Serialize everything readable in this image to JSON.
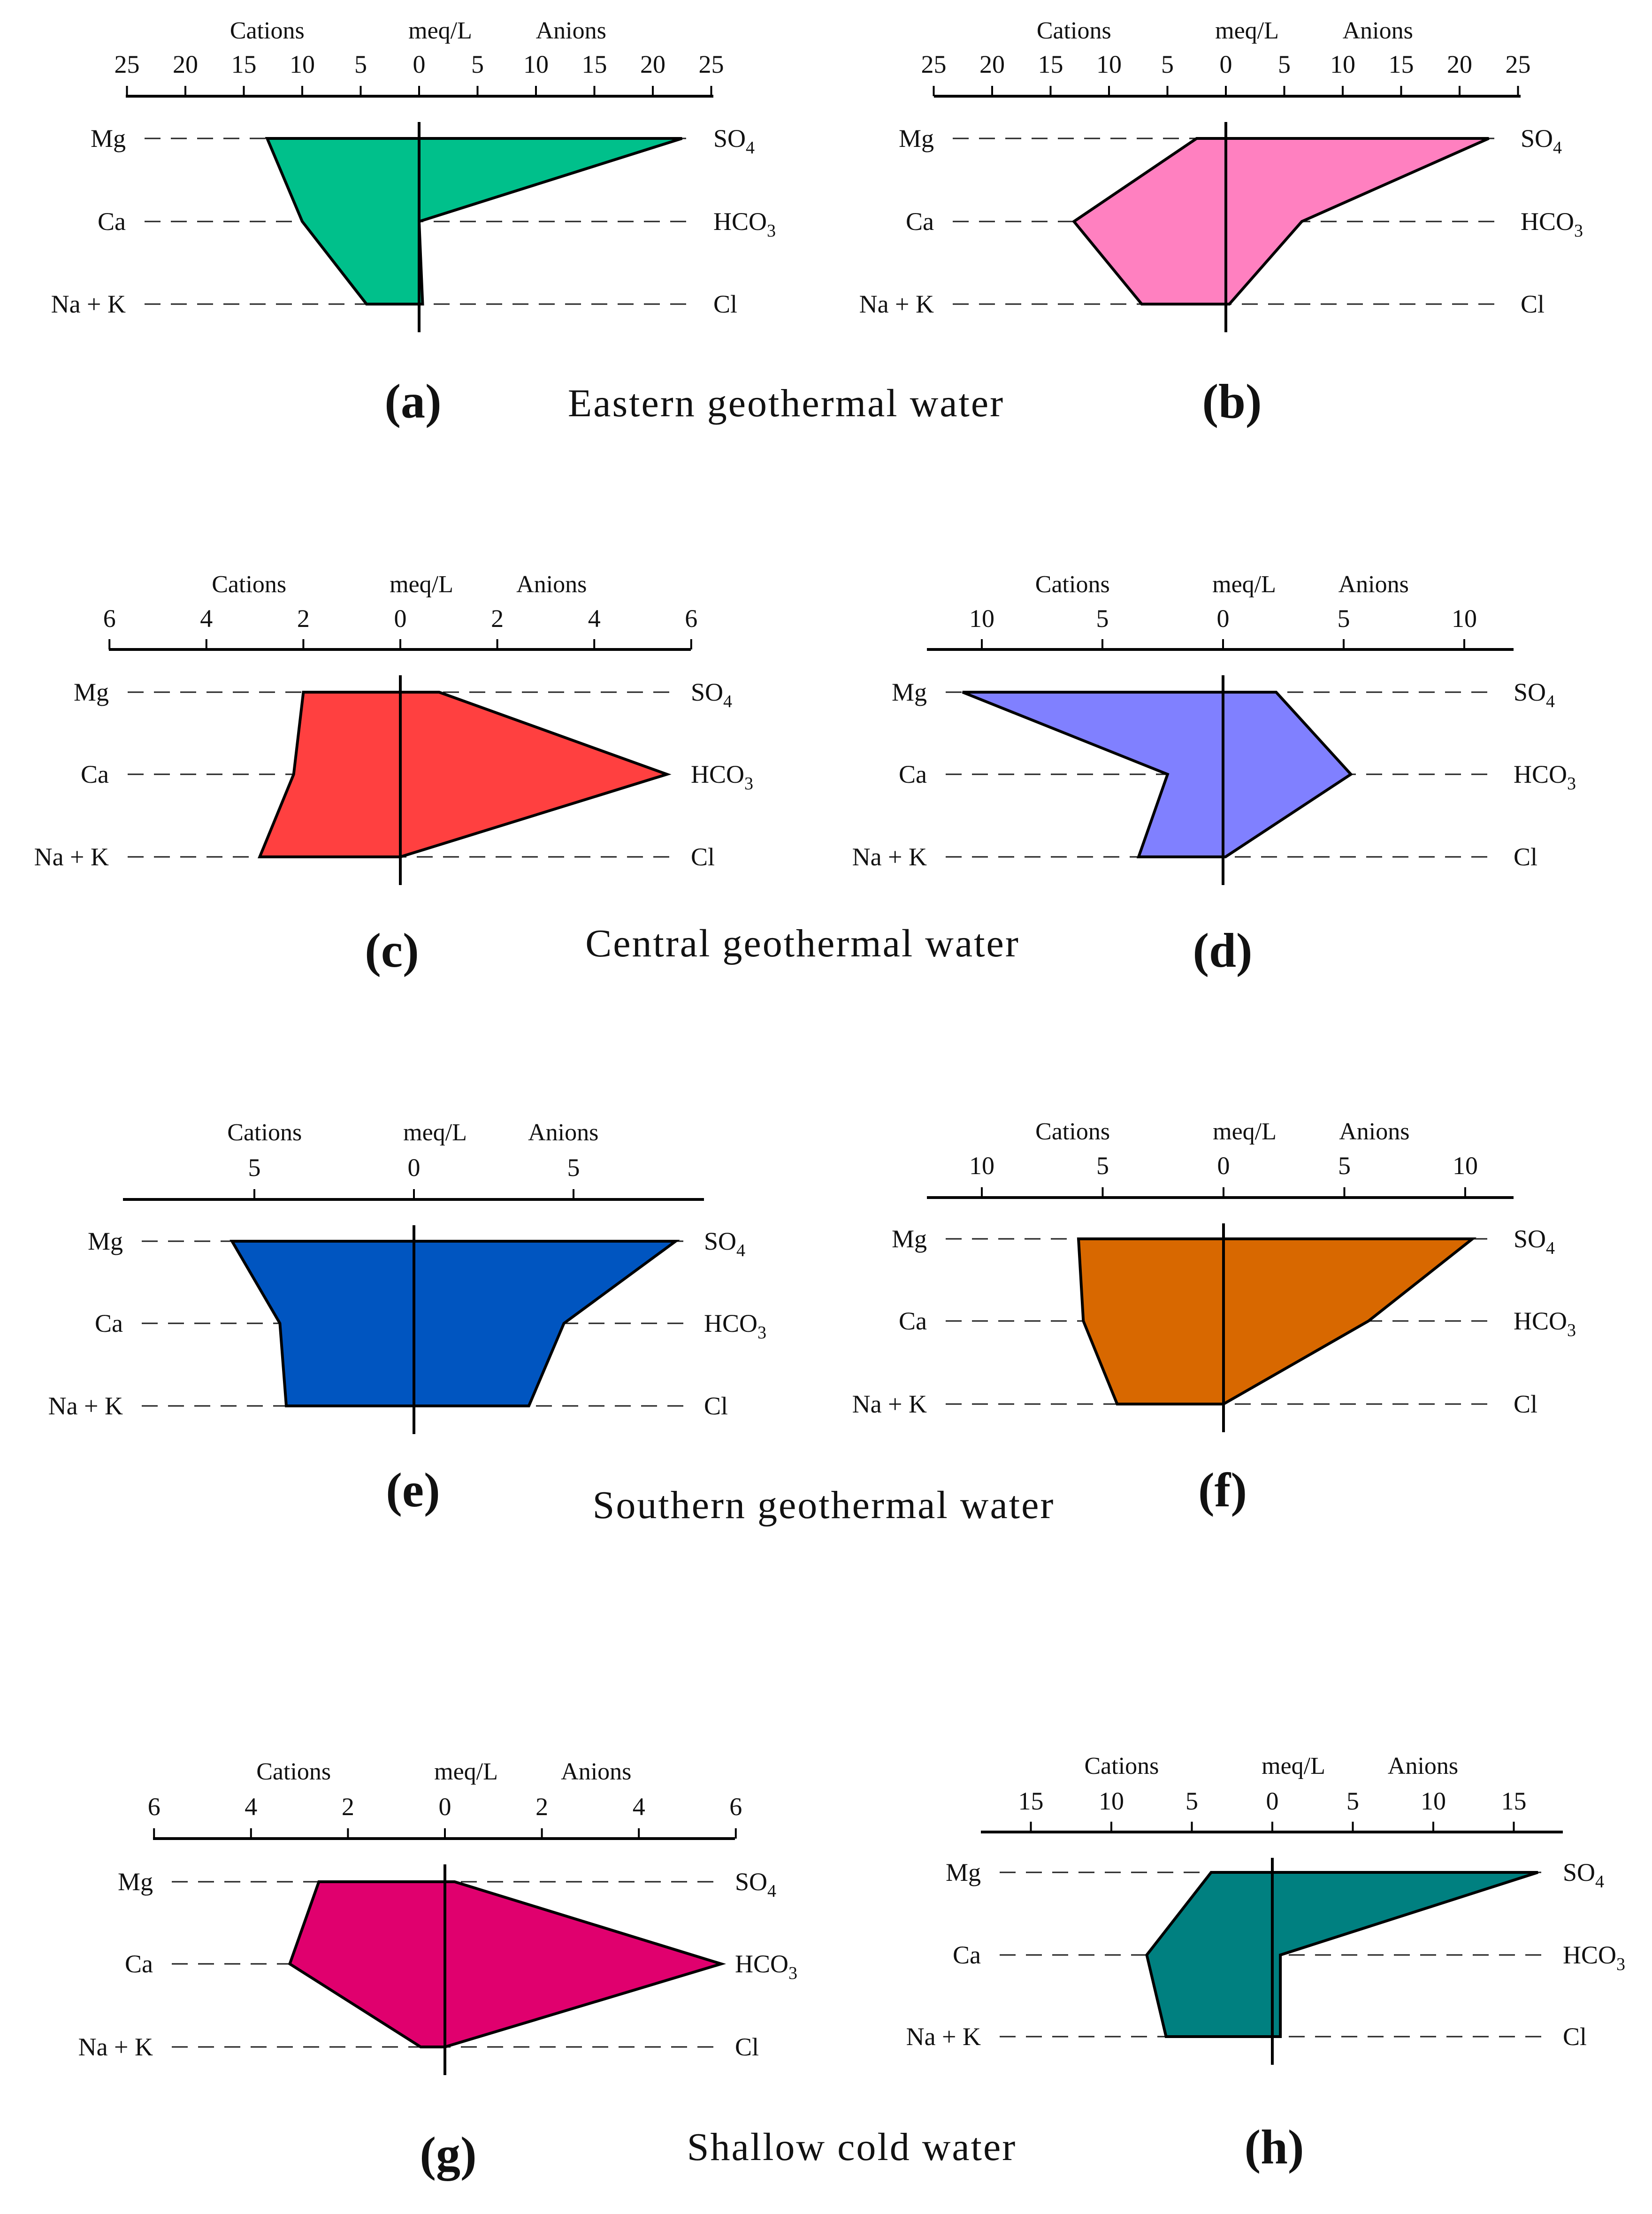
{
  "header": {
    "cations": "Cations",
    "units": "meq/L",
    "anions": "Anions"
  },
  "ions": {
    "left": [
      "Mg",
      "Ca",
      "Na + K"
    ],
    "right": [
      {
        "base": "SO",
        "sub": "4"
      },
      {
        "base": "HCO",
        "sub": "3"
      },
      {
        "base": "Cl",
        "sub": ""
      }
    ]
  },
  "group_captions": [
    "Eastern geothermal water",
    "Central geothermal water",
    "Southern geothermal water",
    "Shallow cold water"
  ],
  "chart_data": [
    {
      "panel": "(a)",
      "type": "area",
      "group": "Eastern geothermal water",
      "color": "#00C08B",
      "ticks": [
        25,
        20,
        15,
        10,
        5,
        0,
        5,
        10,
        15,
        20,
        25
      ],
      "xlim": [
        -25,
        25
      ],
      "cations": {
        "Mg": 13,
        "Ca": 10,
        "Na + K": 4.5
      },
      "anions": {
        "SO4": 22.5,
        "HCO3": 0,
        "Cl": 0.3
      }
    },
    {
      "panel": "(b)",
      "type": "area",
      "group": "Eastern geothermal water",
      "color": "#FF80C0",
      "ticks": [
        25,
        20,
        15,
        10,
        5,
        0,
        5,
        10,
        15,
        20,
        25
      ],
      "xlim": [
        -25,
        25
      ],
      "cations": {
        "Mg": 2.5,
        "Ca": 13,
        "Na + K": 7.2
      },
      "anions": {
        "SO4": 22.5,
        "HCO3": 6.5,
        "Cl": 0.3
      }
    },
    {
      "panel": "(c)",
      "type": "area",
      "group": "Central geothermal water",
      "color": "#FF4040",
      "ticks": [
        6,
        4,
        2,
        0,
        2,
        4,
        6
      ],
      "xlim": [
        -6,
        6
      ],
      "cations": {
        "Mg": 2,
        "Ca": 2.2,
        "Na + K": 2.9
      },
      "anions": {
        "SO4": 0.8,
        "HCO3": 5.5,
        "Cl": 0
      }
    },
    {
      "panel": "(d)",
      "type": "area",
      "group": "Central geothermal water",
      "color": "#8080FF",
      "ticks": [
        10,
        5,
        0,
        5,
        10
      ],
      "xlim": [
        -12,
        12
      ],
      "cations": {
        "Mg": 10.8,
        "Ca": 2.3,
        "Na + K": 3.5
      },
      "anions": {
        "SO4": 2.2,
        "HCO3": 5.3,
        "Cl": 0.1
      }
    },
    {
      "panel": "(e)",
      "type": "area",
      "group": "Southern geothermal water",
      "color": "#0055C0",
      "ticks": [
        5,
        0,
        5
      ],
      "xlim": [
        -9,
        9
      ],
      "cations": {
        "Mg": 5.7,
        "Ca": 4.2,
        "Na + K": 4
      },
      "anions": {
        "SO4": 8.2,
        "HCO3": 4.7,
        "Cl": 3.6
      }
    },
    {
      "panel": "(f)",
      "type": "area",
      "group": "Southern geothermal water",
      "color": "#D86800",
      "ticks": [
        10,
        5,
        0,
        5,
        10
      ],
      "xlim": [
        -12,
        12
      ],
      "cations": {
        "Mg": 6,
        "Ca": 5.8,
        "Na + K": 4.4
      },
      "anions": {
        "SO4": 10.3,
        "HCO3": 6,
        "Cl": 0
      }
    },
    {
      "panel": "(g)",
      "type": "area",
      "group": "Shallow cold water",
      "color": "#E0006E",
      "ticks": [
        6,
        4,
        2,
        0,
        2,
        4,
        6
      ],
      "xlim": [
        -6,
        6
      ],
      "cations": {
        "Mg": 2.6,
        "Ca": 3.2,
        "Na + K": 0.5
      },
      "anions": {
        "SO4": 0.2,
        "HCO3": 5.7,
        "Cl": 0
      }
    },
    {
      "panel": "(h)",
      "type": "area",
      "group": "Shallow cold water",
      "color": "#008080",
      "ticks": [
        15,
        10,
        5,
        0,
        5,
        10,
        15
      ],
      "xlim": [
        -18,
        18
      ],
      "cations": {
        "Mg": 3.8,
        "Ca": 7.8,
        "Na + K": 6.6
      },
      "anions": {
        "SO4": 16.5,
        "HCO3": 0.5,
        "Cl": 0.5
      }
    }
  ]
}
